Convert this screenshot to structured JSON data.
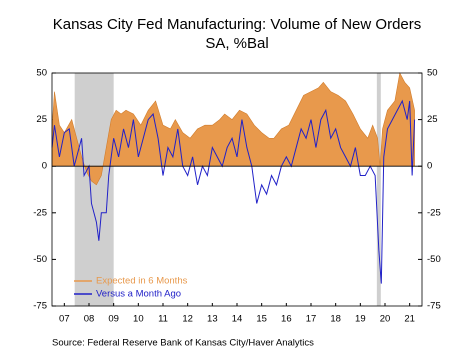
{
  "chart_data": {
    "type": "area-line",
    "title": "Kansas City Fed Manufacturing: Volume of New Orders",
    "subtitle": "SA, %Bal",
    "source": "Source:  Federal Reserve Bank of Kansas City/Haver Analytics",
    "xlim": [
      2007,
      2022
    ],
    "xticks": [
      {
        "value": 2007.5,
        "label": "07"
      },
      {
        "value": 2008.5,
        "label": "08"
      },
      {
        "value": 2009.5,
        "label": "09"
      },
      {
        "value": 2010.5,
        "label": "10"
      },
      {
        "value": 2011.5,
        "label": "11"
      },
      {
        "value": 2012.5,
        "label": "12"
      },
      {
        "value": 2013.5,
        "label": "13"
      },
      {
        "value": 2014.5,
        "label": "14"
      },
      {
        "value": 2015.5,
        "label": "15"
      },
      {
        "value": 2016.5,
        "label": "16"
      },
      {
        "value": 2017.5,
        "label": "17"
      },
      {
        "value": 2018.5,
        "label": "18"
      },
      {
        "value": 2019.5,
        "label": "19"
      },
      {
        "value": 2020.5,
        "label": "20"
      },
      {
        "value": 2021.5,
        "label": "21"
      }
    ],
    "ylim": [
      -75,
      50
    ],
    "yticks": [
      50,
      25,
      0,
      -25,
      -50,
      -75
    ],
    "shaded_periods": [
      [
        2007.92,
        2009.5
      ],
      [
        2020.17,
        2020.33
      ]
    ],
    "series": [
      {
        "name": "Expected in 6 Months",
        "color": "#e8994c",
        "x": [
          2007.0,
          2007.1,
          2007.3,
          2007.5,
          2007.8,
          2008.0,
          2008.2,
          2008.4,
          2008.6,
          2008.8,
          2009.0,
          2009.2,
          2009.4,
          2009.6,
          2009.8,
          2010.0,
          2010.3,
          2010.6,
          2010.9,
          2011.2,
          2011.5,
          2011.8,
          2012.0,
          2012.3,
          2012.6,
          2012.9,
          2013.2,
          2013.5,
          2013.8,
          2014.0,
          2014.3,
          2014.6,
          2014.9,
          2015.2,
          2015.5,
          2015.8,
          2016.0,
          2016.3,
          2016.6,
          2016.9,
          2017.2,
          2017.5,
          2017.8,
          2018.0,
          2018.3,
          2018.6,
          2018.9,
          2019.2,
          2019.5,
          2019.8,
          2020.0,
          2020.2,
          2020.3,
          2020.4,
          2020.6,
          2020.9,
          2021.1,
          2021.3,
          2021.5,
          2021.7
        ],
        "values": [
          20,
          40,
          22,
          18,
          25,
          15,
          5,
          -3,
          -8,
          -10,
          -5,
          10,
          25,
          30,
          28,
          30,
          28,
          22,
          30,
          35,
          22,
          20,
          25,
          18,
          15,
          20,
          22,
          22,
          25,
          28,
          25,
          30,
          28,
          22,
          18,
          15,
          15,
          20,
          22,
          30,
          38,
          40,
          42,
          45,
          40,
          38,
          35,
          28,
          20,
          15,
          22,
          15,
          0,
          20,
          30,
          35,
          50,
          45,
          42,
          30
        ]
      },
      {
        "name": "Versus a Month Ago",
        "color": "#2121c8",
        "x": [
          2007.0,
          2007.1,
          2007.3,
          2007.5,
          2007.7,
          2007.9,
          2008.0,
          2008.2,
          2008.3,
          2008.5,
          2008.6,
          2008.8,
          2008.9,
          2009.0,
          2009.2,
          2009.3,
          2009.5,
          2009.7,
          2009.9,
          2010.1,
          2010.3,
          2010.5,
          2010.7,
          2010.9,
          2011.1,
          2011.3,
          2011.5,
          2011.7,
          2011.9,
          2012.1,
          2012.3,
          2012.5,
          2012.7,
          2012.9,
          2013.1,
          2013.3,
          2013.5,
          2013.7,
          2013.9,
          2014.1,
          2014.3,
          2014.5,
          2014.7,
          2014.9,
          2015.1,
          2015.3,
          2015.5,
          2015.7,
          2015.9,
          2016.1,
          2016.3,
          2016.5,
          2016.7,
          2016.9,
          2017.1,
          2017.3,
          2017.5,
          2017.7,
          2017.9,
          2018.1,
          2018.3,
          2018.5,
          2018.7,
          2018.9,
          2019.1,
          2019.3,
          2019.5,
          2019.7,
          2019.9,
          2020.1,
          2020.25,
          2020.35,
          2020.45,
          2020.6,
          2020.8,
          2021.0,
          2021.2,
          2021.4,
          2021.5,
          2021.6,
          2021.7
        ],
        "values": [
          10,
          22,
          5,
          18,
          20,
          0,
          5,
          15,
          -5,
          0,
          -20,
          -30,
          -40,
          -25,
          -25,
          -5,
          15,
          5,
          20,
          10,
          25,
          5,
          15,
          25,
          28,
          15,
          -5,
          10,
          5,
          20,
          0,
          -5,
          5,
          -10,
          0,
          -5,
          10,
          5,
          0,
          10,
          15,
          5,
          25,
          10,
          0,
          -20,
          -10,
          -15,
          -5,
          -10,
          0,
          5,
          0,
          10,
          20,
          15,
          25,
          10,
          25,
          30,
          15,
          20,
          10,
          5,
          0,
          10,
          -5,
          -5,
          0,
          -5,
          -45,
          -63,
          5,
          20,
          25,
          30,
          35,
          25,
          35,
          -5,
          25
        ]
      }
    ]
  }
}
